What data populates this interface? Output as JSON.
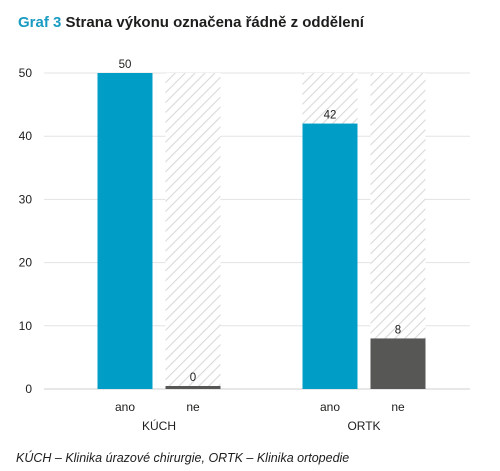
{
  "title": {
    "prefix": "Graf 3",
    "text": "Strana výkonu označena řádně z oddělení"
  },
  "chart_data": {
    "type": "bar",
    "categories": [
      "KÚCH",
      "ORTK"
    ],
    "subcategories": [
      "ano",
      "ne"
    ],
    "series": [
      {
        "name": "ano",
        "values": [
          50,
          42
        ],
        "color": "#009ec6"
      },
      {
        "name": "ne",
        "values": [
          0,
          8
        ],
        "color": "#575756"
      }
    ],
    "ylim": [
      0,
      50
    ],
    "yticks": [
      0,
      10,
      20,
      30,
      40,
      50
    ],
    "background_pattern": "diagonal-hatch",
    "data_labels": true
  },
  "footnote": "KÚCH – Klinika úrazové chirurgie, ORTK – Klinika ortopedie"
}
